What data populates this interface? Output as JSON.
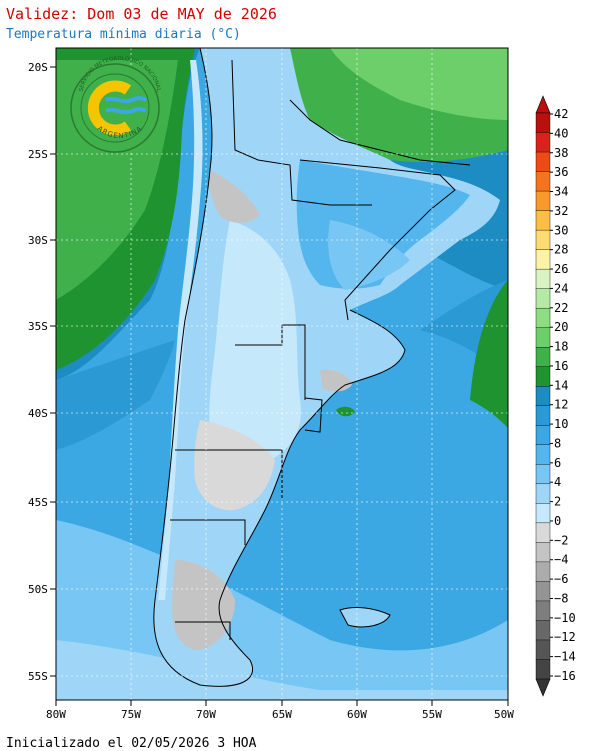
{
  "header": {
    "title": "Validez: Dom 03 de MAY de 2026",
    "subtitle": "Temperatura mínima diaria (°C)"
  },
  "footer": {
    "init_text": "Inicializado el 02/05/2026 3 HOA"
  },
  "logo": {
    "ring_text": "SERVICIO METEOROLÓGICO NACIONAL",
    "bottom_text": "ARGENTINA"
  },
  "axes": {
    "lat_ticks": [
      "20S",
      "25S",
      "30S",
      "35S",
      "40S",
      "45S",
      "50S",
      "55S"
    ],
    "lon_ticks": [
      "80W",
      "75W",
      "70W",
      "65W",
      "60W",
      "55W",
      "50W"
    ]
  },
  "colorbar": {
    "labels": [
      "42",
      "40",
      "38",
      "36",
      "34",
      "32",
      "30",
      "28",
      "26",
      "24",
      "22",
      "20",
      "18",
      "16",
      "14",
      "12",
      "10",
      "8",
      "6",
      "4",
      "2",
      "0",
      "−2",
      "−4",
      "−6",
      "−8",
      "−10",
      "−12",
      "−14",
      "−16"
    ],
    "colors": [
      "#b80f0f",
      "#d8221b",
      "#ee4a16",
      "#f5731c",
      "#f89a2a",
      "#fbbf45",
      "#fcdc72",
      "#fdf3a6",
      "#d9f3c4",
      "#b4eaa6",
      "#8fdd83",
      "#6ccf69",
      "#3fb04a",
      "#1f932f",
      "#1d8cc2",
      "#2b9ad4",
      "#3ba8e3",
      "#55b6ee",
      "#78c6f3",
      "#9fd6f8",
      "#c6e8fb",
      "#d9d9d9",
      "#c4c4c4",
      "#acacac",
      "#949494",
      "#7e7e7e",
      "#686868",
      "#555555",
      "#444444"
    ]
  },
  "map_colors": {
    "ocean_warm": "#1d8cc2",
    "ocean_mid": "#3ba8e3",
    "ocean_cool": "#55b6ee",
    "land_hot": "#3fb04a",
    "land_warm": "#8fdd83",
    "land_cool": "#78c6f3",
    "land_cold": "#c6e8fb",
    "land_freeze": "#c4c4c4"
  }
}
